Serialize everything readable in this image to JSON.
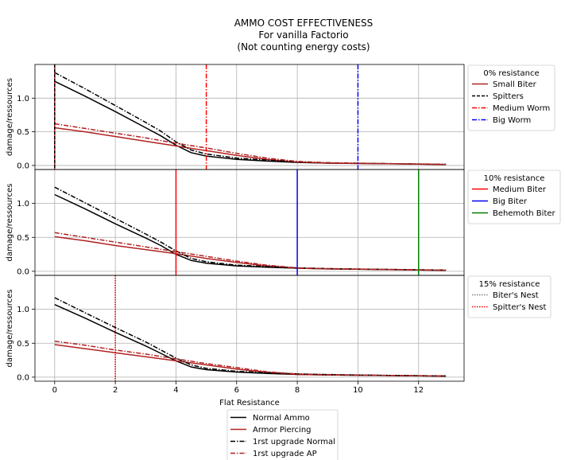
{
  "figure": {
    "title_lines": [
      "AMMO COST EFFECTIVENESS",
      "For vanilla Factorio",
      "(Not counting energy costs)"
    ],
    "xlabel": "Flat Resistance",
    "ylabel": "damage/ressources"
  },
  "colors": {
    "normal": "#000000",
    "ap": "#b22222",
    "red": "#ff0000",
    "blue": "#0000ff",
    "green": "#008000",
    "grid": "#b0b0b0",
    "gray_dotted": "#808080"
  },
  "ammo_legend": [
    {
      "label": "Normal Ammo",
      "color": "#000000",
      "style": "solid"
    },
    {
      "label": "Armor Piercing",
      "color": "#b22222",
      "style": "solid"
    },
    {
      "label": "1rst upgrade Normal",
      "color": "#000000",
      "style": "dashdot"
    },
    {
      "label": "1rst upgrade AP",
      "color": "#b22222",
      "style": "dashdot"
    }
  ],
  "chart_data": [
    {
      "type": "line",
      "xlabel": "",
      "ylabel": "damage/ressources",
      "xlim": [
        -0.65,
        13.5
      ],
      "ylim": [
        -0.06,
        1.5
      ],
      "xticks": [],
      "yticks": [
        0.0,
        0.5,
        1.0
      ],
      "ytick_labels": [
        "0.0",
        "0.5",
        "1.0"
      ],
      "grid": true,
      "series": [
        {
          "name": "Normal Ammo",
          "color": "#000000",
          "style": "solid",
          "x": [
            0,
            1,
            2,
            3,
            3.5,
            4,
            4.5,
            5,
            6,
            7,
            8,
            9,
            10,
            11,
            12,
            12.9
          ],
          "y": [
            1.25,
            1.03,
            0.8,
            0.56,
            0.44,
            0.3,
            0.19,
            0.14,
            0.09,
            0.065,
            0.045,
            0.035,
            0.03,
            0.025,
            0.02,
            0.015
          ]
        },
        {
          "name": "Armor Piercing",
          "color": "#b22222",
          "style": "solid",
          "x": [
            0,
            1,
            2,
            3,
            4,
            5,
            6,
            7,
            8,
            9,
            10,
            11,
            12,
            12.9
          ],
          "y": [
            0.56,
            0.5,
            0.43,
            0.36,
            0.29,
            0.22,
            0.15,
            0.09,
            0.05,
            0.035,
            0.03,
            0.025,
            0.02,
            0.015
          ]
        },
        {
          "name": "1rst upgrade Normal",
          "color": "#000000",
          "style": "dashdot",
          "x": [
            0,
            1,
            2,
            3,
            3.5,
            4,
            4.5,
            5,
            6,
            7,
            8,
            9,
            10,
            11,
            12,
            12.9
          ],
          "y": [
            1.38,
            1.14,
            0.89,
            0.64,
            0.51,
            0.35,
            0.23,
            0.17,
            0.11,
            0.08,
            0.055,
            0.04,
            0.033,
            0.028,
            0.022,
            0.018
          ]
        },
        {
          "name": "1rst upgrade AP",
          "color": "#b22222",
          "style": "dashdot",
          "x": [
            0,
            1,
            2,
            3,
            4,
            5,
            6,
            7,
            8,
            9,
            10,
            11,
            12,
            12.9
          ],
          "y": [
            0.62,
            0.55,
            0.48,
            0.41,
            0.33,
            0.26,
            0.18,
            0.11,
            0.06,
            0.04,
            0.033,
            0.028,
            0.022,
            0.018
          ]
        }
      ],
      "vlines": [
        {
          "name": "Small Biter",
          "x": 0,
          "color": "#b22222",
          "style": "solid"
        },
        {
          "name": "Spitters",
          "x": 0,
          "color": "#000000",
          "style": "dashed"
        },
        {
          "name": "Medium Worm",
          "x": 5,
          "color": "#ff0000",
          "style": "dashdot"
        },
        {
          "name": "Big Worm",
          "x": 10,
          "color": "#0000ff",
          "style": "dashdot"
        }
      ],
      "legend": {
        "title": "0% resistance",
        "placement": "outside-right"
      }
    },
    {
      "type": "line",
      "xlabel": "",
      "ylabel": "damage/ressources",
      "xlim": [
        -0.65,
        13.5
      ],
      "ylim": [
        -0.06,
        1.5
      ],
      "xticks": [],
      "yticks": [
        0.0,
        0.5,
        1.0
      ],
      "ytick_labels": [
        "0.0",
        "0.5",
        "1.0"
      ],
      "grid": true,
      "series": [
        {
          "name": "Normal Ammo",
          "color": "#000000",
          "style": "solid",
          "x": [
            0,
            1,
            2,
            3,
            3.5,
            4,
            4.5,
            5,
            6,
            7,
            8,
            9,
            10,
            11,
            12,
            12.9
          ],
          "y": [
            1.13,
            0.92,
            0.7,
            0.49,
            0.38,
            0.25,
            0.16,
            0.12,
            0.08,
            0.06,
            0.045,
            0.035,
            0.03,
            0.025,
            0.02,
            0.015
          ]
        },
        {
          "name": "Armor Piercing",
          "color": "#b22222",
          "style": "solid",
          "x": [
            0,
            1,
            2,
            3,
            4,
            5,
            6,
            7,
            8,
            9,
            10,
            11,
            12,
            12.9
          ],
          "y": [
            0.51,
            0.45,
            0.38,
            0.32,
            0.26,
            0.19,
            0.13,
            0.08,
            0.045,
            0.035,
            0.03,
            0.025,
            0.02,
            0.015
          ]
        },
        {
          "name": "1rst upgrade Normal",
          "color": "#000000",
          "style": "dashdot",
          "x": [
            0,
            1,
            2,
            3,
            3.5,
            4,
            4.5,
            5,
            6,
            7,
            8,
            9,
            10,
            11,
            12,
            12.9
          ],
          "y": [
            1.24,
            1.01,
            0.78,
            0.55,
            0.43,
            0.3,
            0.19,
            0.14,
            0.09,
            0.07,
            0.05,
            0.04,
            0.033,
            0.028,
            0.022,
            0.018
          ]
        },
        {
          "name": "1rst upgrade AP",
          "color": "#b22222",
          "style": "dashdot",
          "x": [
            0,
            1,
            2,
            3,
            4,
            5,
            6,
            7,
            8,
            9,
            10,
            11,
            12,
            12.9
          ],
          "y": [
            0.57,
            0.5,
            0.43,
            0.36,
            0.29,
            0.22,
            0.15,
            0.09,
            0.05,
            0.04,
            0.033,
            0.028,
            0.022,
            0.018
          ]
        }
      ],
      "vlines": [
        {
          "name": "Medium Biter",
          "x": 4,
          "color": "#ff0000",
          "style": "solid"
        },
        {
          "name": "Big Biter",
          "x": 8,
          "color": "#0000ff",
          "style": "solid"
        },
        {
          "name": "Behemoth Biter",
          "x": 12,
          "color": "#008000",
          "style": "solid"
        }
      ],
      "legend": {
        "title": "10% resistance",
        "placement": "outside-right"
      }
    },
    {
      "type": "line",
      "xlabel": "Flat Resistance",
      "ylabel": "damage/ressources",
      "xlim": [
        -0.65,
        13.5
      ],
      "ylim": [
        -0.06,
        1.5
      ],
      "xticks": [
        0,
        2,
        4,
        6,
        8,
        10,
        12
      ],
      "xtick_labels": [
        "0",
        "2",
        "4",
        "6",
        "8",
        "10",
        "12"
      ],
      "yticks": [
        0.0,
        0.5,
        1.0
      ],
      "ytick_labels": [
        "0.0",
        "0.5",
        "1.0"
      ],
      "grid": true,
      "series": [
        {
          "name": "Normal Ammo",
          "color": "#000000",
          "style": "solid",
          "x": [
            0,
            1,
            2,
            3,
            3.5,
            4,
            4.5,
            5,
            6,
            7,
            8,
            9,
            10,
            11,
            12,
            12.9
          ],
          "y": [
            1.07,
            0.87,
            0.66,
            0.46,
            0.35,
            0.24,
            0.15,
            0.11,
            0.075,
            0.055,
            0.04,
            0.033,
            0.028,
            0.023,
            0.019,
            0.015
          ]
        },
        {
          "name": "Armor Piercing",
          "color": "#b22222",
          "style": "solid",
          "x": [
            0,
            1,
            2,
            3,
            4,
            5,
            6,
            7,
            8,
            9,
            10,
            11,
            12,
            12.9
          ],
          "y": [
            0.48,
            0.42,
            0.36,
            0.3,
            0.24,
            0.18,
            0.12,
            0.07,
            0.04,
            0.033,
            0.028,
            0.023,
            0.019,
            0.015
          ]
        },
        {
          "name": "1rst upgrade Normal",
          "color": "#000000",
          "style": "dashdot",
          "x": [
            0,
            1,
            2,
            3,
            3.5,
            4,
            4.5,
            5,
            6,
            7,
            8,
            9,
            10,
            11,
            12,
            12.9
          ],
          "y": [
            1.17,
            0.95,
            0.73,
            0.52,
            0.4,
            0.28,
            0.18,
            0.13,
            0.085,
            0.065,
            0.048,
            0.038,
            0.032,
            0.026,
            0.021,
            0.017
          ]
        },
        {
          "name": "1rst upgrade AP",
          "color": "#b22222",
          "style": "dashdot",
          "x": [
            0,
            1,
            2,
            3,
            4,
            5,
            6,
            7,
            8,
            9,
            10,
            11,
            12,
            12.9
          ],
          "y": [
            0.53,
            0.47,
            0.4,
            0.34,
            0.27,
            0.2,
            0.14,
            0.08,
            0.045,
            0.037,
            0.031,
            0.026,
            0.021,
            0.017
          ]
        }
      ],
      "vlines": [
        {
          "name": "Biter's Nest",
          "x": 2,
          "color": "#808080",
          "style": "dotted"
        },
        {
          "name": "Spitter's Nest",
          "x": 2,
          "color": "#ff0000",
          "style": "dotted"
        }
      ],
      "legend": {
        "title": "15% resistance",
        "placement": "outside-right"
      }
    }
  ]
}
